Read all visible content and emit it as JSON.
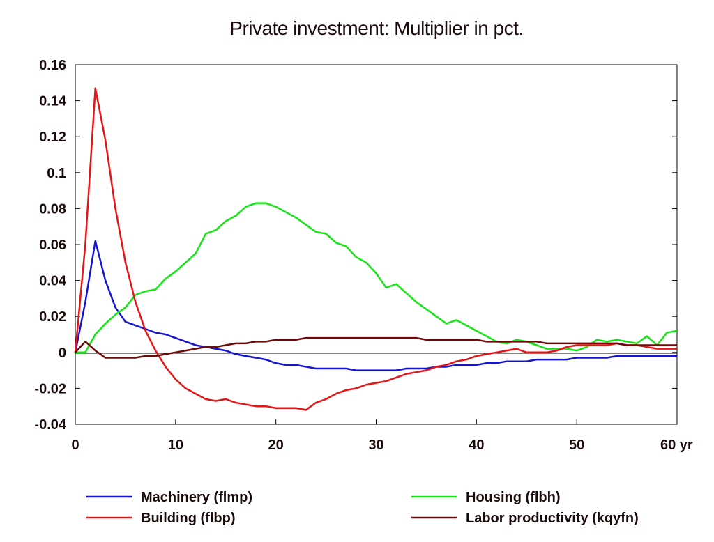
{
  "chart_data": {
    "type": "line",
    "title": "Private investment: Multiplier in pct.",
    "xlabel": "",
    "ylabel": "",
    "x_unit_label": "yr",
    "xlim": [
      0,
      60
    ],
    "ylim": [
      -0.04,
      0.16
    ],
    "x_ticks": [
      0,
      10,
      20,
      30,
      40,
      50,
      60
    ],
    "x_tick_labels": [
      "0",
      "10",
      "20",
      "30",
      "40",
      "50",
      "60 yr"
    ],
    "y_ticks": [
      -0.04,
      -0.02,
      0,
      0.02,
      0.04,
      0.06,
      0.08,
      0.1,
      0.12,
      0.14,
      0.16
    ],
    "y_tick_labels": [
      "-0.04",
      "-0.02",
      "0",
      "0.02",
      "0.04",
      "0.06",
      "0.08",
      "0.1",
      "0.12",
      "0.14",
      "0.16"
    ],
    "grid": false,
    "zero_line": true,
    "legend_position": "bottom",
    "series": [
      {
        "name": "Machinery (flmp)",
        "color": "#1414d2",
        "legend_column": 0,
        "x": [
          0,
          1,
          2,
          3,
          4,
          5,
          6,
          7,
          8,
          9,
          10,
          11,
          12,
          13,
          14,
          15,
          16,
          17,
          18,
          19,
          20,
          21,
          22,
          23,
          24,
          25,
          26,
          27,
          28,
          29,
          30,
          31,
          32,
          33,
          34,
          35,
          36,
          37,
          38,
          39,
          40,
          41,
          42,
          43,
          44,
          45,
          46,
          47,
          48,
          49,
          50,
          51,
          52,
          53,
          54,
          55,
          56,
          57,
          58,
          59,
          60
        ],
        "values": [
          0,
          0.028,
          0.062,
          0.04,
          0.025,
          0.017,
          0.015,
          0.013,
          0.011,
          0.01,
          0.008,
          0.006,
          0.004,
          0.003,
          0.002,
          0.001,
          -0.001,
          -0.002,
          -0.003,
          -0.004,
          -0.006,
          -0.007,
          -0.007,
          -0.008,
          -0.009,
          -0.009,
          -0.009,
          -0.009,
          -0.01,
          -0.01,
          -0.01,
          -0.01,
          -0.01,
          -0.009,
          -0.009,
          -0.009,
          -0.008,
          -0.008,
          -0.007,
          -0.007,
          -0.007,
          -0.006,
          -0.006,
          -0.005,
          -0.005,
          -0.005,
          -0.004,
          -0.004,
          -0.004,
          -0.004,
          -0.003,
          -0.003,
          -0.003,
          -0.003,
          -0.002,
          -0.002,
          -0.002,
          -0.002,
          -0.002,
          -0.002,
          -0.002
        ]
      },
      {
        "name": "Housing (flbh)",
        "color": "#14e614",
        "legend_column": 1,
        "x": [
          0,
          1,
          2,
          3,
          4,
          5,
          6,
          7,
          8,
          9,
          10,
          11,
          12,
          13,
          14,
          15,
          16,
          17,
          18,
          19,
          20,
          21,
          22,
          23,
          24,
          25,
          26,
          27,
          28,
          29,
          30,
          31,
          32,
          33,
          34,
          35,
          36,
          37,
          38,
          39,
          40,
          41,
          42,
          43,
          44,
          45,
          46,
          47,
          48,
          49,
          50,
          51,
          52,
          53,
          54,
          55,
          56,
          57,
          58,
          59,
          60
        ],
        "values": [
          0,
          0,
          0.01,
          0.016,
          0.021,
          0.025,
          0.032,
          0.034,
          0.035,
          0.041,
          0.045,
          0.05,
          0.055,
          0.066,
          0.068,
          0.073,
          0.076,
          0.081,
          0.083,
          0.083,
          0.081,
          0.078,
          0.075,
          0.071,
          0.067,
          0.066,
          0.061,
          0.059,
          0.053,
          0.05,
          0.044,
          0.036,
          0.038,
          0.033,
          0.028,
          0.024,
          0.02,
          0.016,
          0.018,
          0.015,
          0.012,
          0.009,
          0.006,
          0.005,
          0.007,
          0.006,
          0.004,
          0.002,
          0.002,
          0.002,
          0.001,
          0.003,
          0.007,
          0.006,
          0.007,
          0.006,
          0.005,
          0.009,
          0.004,
          0.011,
          0.012
        ]
      },
      {
        "name": "Building (flbp)",
        "color": "#e61414",
        "legend_column": 0,
        "x": [
          0,
          1,
          2,
          3,
          4,
          5,
          6,
          7,
          8,
          9,
          10,
          11,
          12,
          13,
          14,
          15,
          16,
          17,
          18,
          19,
          20,
          21,
          22,
          23,
          24,
          25,
          26,
          27,
          28,
          29,
          30,
          31,
          32,
          33,
          34,
          35,
          36,
          37,
          38,
          39,
          40,
          41,
          42,
          43,
          44,
          45,
          46,
          47,
          48,
          49,
          50,
          51,
          52,
          53,
          54,
          55,
          56,
          57,
          58,
          59,
          60
        ],
        "values": [
          0,
          0.06,
          0.147,
          0.118,
          0.08,
          0.05,
          0.028,
          0.012,
          0.001,
          -0.008,
          -0.015,
          -0.02,
          -0.023,
          -0.026,
          -0.027,
          -0.026,
          -0.028,
          -0.029,
          -0.03,
          -0.03,
          -0.031,
          -0.031,
          -0.031,
          -0.032,
          -0.028,
          -0.026,
          -0.023,
          -0.021,
          -0.02,
          -0.018,
          -0.017,
          -0.016,
          -0.014,
          -0.012,
          -0.011,
          -0.01,
          -0.008,
          -0.007,
          -0.005,
          -0.004,
          -0.002,
          -0.001,
          0,
          0.001,
          0.002,
          0,
          0,
          0,
          0.001,
          0.003,
          0.004,
          0.004,
          0.004,
          0.004,
          0.005,
          0.004,
          0.004,
          0.003,
          0.002,
          0.002,
          0.002
        ]
      },
      {
        "name": "Labor productivity (kqyfn)",
        "color": "#6e0a0a",
        "legend_column": 1,
        "x": [
          0,
          1,
          2,
          3,
          4,
          5,
          6,
          7,
          8,
          9,
          10,
          11,
          12,
          13,
          14,
          15,
          16,
          17,
          18,
          19,
          20,
          21,
          22,
          23,
          24,
          25,
          26,
          27,
          28,
          29,
          30,
          31,
          32,
          33,
          34,
          35,
          36,
          37,
          38,
          39,
          40,
          41,
          42,
          43,
          44,
          45,
          46,
          47,
          48,
          49,
          50,
          51,
          52,
          53,
          54,
          55,
          56,
          57,
          58,
          59,
          60
        ],
        "values": [
          0,
          0.006,
          0.001,
          -0.003,
          -0.003,
          -0.003,
          -0.003,
          -0.002,
          -0.002,
          -0.001,
          0,
          0.001,
          0.002,
          0.003,
          0.003,
          0.004,
          0.005,
          0.005,
          0.006,
          0.006,
          0.007,
          0.007,
          0.007,
          0.008,
          0.008,
          0.008,
          0.008,
          0.008,
          0.008,
          0.008,
          0.008,
          0.008,
          0.008,
          0.008,
          0.008,
          0.007,
          0.007,
          0.007,
          0.007,
          0.007,
          0.007,
          0.006,
          0.006,
          0.006,
          0.006,
          0.006,
          0.006,
          0.005,
          0.005,
          0.005,
          0.005,
          0.005,
          0.005,
          0.005,
          0.005,
          0.004,
          0.004,
          0.004,
          0.004,
          0.004,
          0.004
        ]
      }
    ]
  }
}
